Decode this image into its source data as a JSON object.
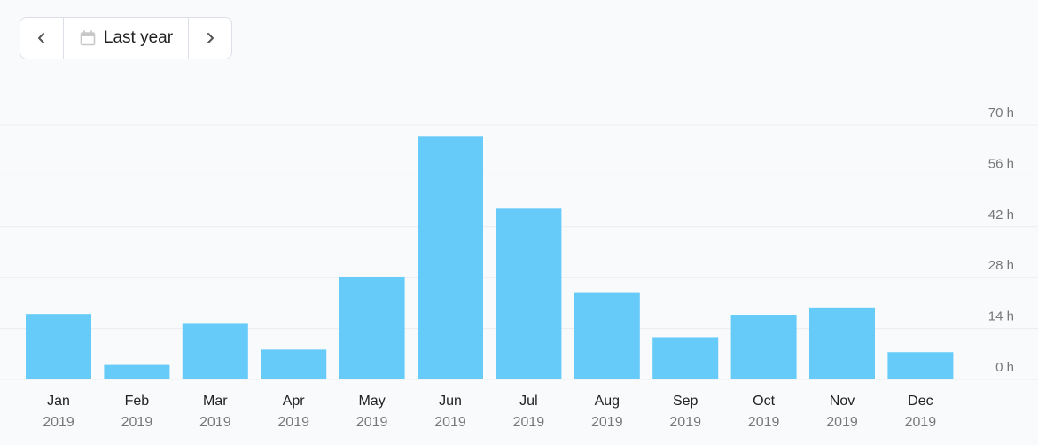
{
  "range_picker": {
    "label": "Last year",
    "prev_icon": "chevron-left-icon",
    "next_icon": "chevron-right-icon",
    "calendar_icon": "calendar-icon"
  },
  "colors": {
    "bar": "#66cbf8",
    "grid": "#ebedf0",
    "axis_text": "#777777",
    "month_text": "#222222"
  },
  "chart_data": {
    "type": "bar",
    "categories": [
      "Jan",
      "Feb",
      "Mar",
      "Apr",
      "May",
      "Jun",
      "Jul",
      "Aug",
      "Sep",
      "Oct",
      "Nov",
      "Dec"
    ],
    "category_years": [
      "2019",
      "2019",
      "2019",
      "2019",
      "2019",
      "2019",
      "2019",
      "2019",
      "2019",
      "2019",
      "2019",
      "2019"
    ],
    "values": [
      18,
      4,
      15.5,
      8.2,
      28.3,
      67,
      47,
      24,
      11.6,
      17.8,
      19.8,
      7.5
    ],
    "y_unit": "h",
    "y_ticks": [
      0,
      14,
      28,
      42,
      56,
      70
    ],
    "y_tick_labels": [
      "0 h",
      "14 h",
      "28 h",
      "42 h",
      "56 h",
      "70 h"
    ],
    "ylim": [
      0,
      70
    ],
    "grid": true,
    "y_axis_position": "right",
    "title": "",
    "xlabel": "",
    "ylabel": ""
  }
}
